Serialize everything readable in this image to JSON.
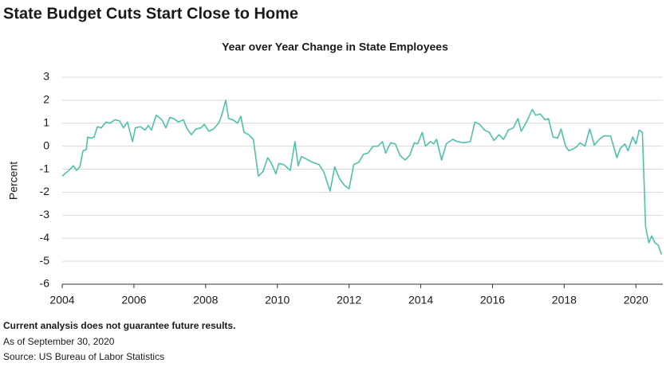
{
  "chart_data": {
    "type": "line",
    "title": "State Budget Cuts Start Close to Home",
    "subtitle": "Year over Year Change in State Employees",
    "y_label": "Percent",
    "footnote": "Current analysis does not guarantee future results.",
    "as_of": "As of September 30, 2020",
    "source": "Source: US Bureau of Labor Statistics",
    "xlim": [
      2004,
      2020.75
    ],
    "xticks": [
      2004,
      2006,
      2008,
      2010,
      2012,
      2014,
      2016,
      2018,
      2020
    ],
    "ylim": [
      -6,
      3
    ],
    "yticks": [
      -6,
      -5,
      -4,
      -3,
      -2,
      -1,
      0,
      1,
      2,
      3
    ],
    "grid": true,
    "x": [
      2004.0,
      2004.22,
      2004.31,
      2004.4,
      2004.49,
      2004.58,
      2004.67,
      2004.71,
      2004.8,
      2004.89,
      2004.98,
      2005.09,
      2005.22,
      2005.33,
      2005.47,
      2005.6,
      2005.71,
      2005.82,
      2005.96,
      2006.04,
      2006.18,
      2006.31,
      2006.4,
      2006.49,
      2006.62,
      2006.78,
      2006.89,
      2007.0,
      2007.11,
      2007.24,
      2007.38,
      2007.47,
      2007.6,
      2007.73,
      2007.87,
      2007.96,
      2008.09,
      2008.22,
      2008.36,
      2008.44,
      2008.56,
      2008.64,
      2008.76,
      2008.89,
      2008.98,
      2009.07,
      2009.2,
      2009.33,
      2009.47,
      2009.6,
      2009.73,
      2009.82,
      2009.96,
      2010.04,
      2010.18,
      2010.36,
      2010.49,
      2010.58,
      2010.67,
      2010.8,
      2010.98,
      2011.16,
      2011.29,
      2011.47,
      2011.6,
      2011.73,
      2011.87,
      2012.0,
      2012.13,
      2012.27,
      2012.4,
      2012.53,
      2012.67,
      2012.8,
      2012.93,
      2013.02,
      2013.16,
      2013.29,
      2013.42,
      2013.56,
      2013.69,
      2013.82,
      2013.91,
      2014.04,
      2014.13,
      2014.27,
      2014.36,
      2014.44,
      2014.58,
      2014.71,
      2014.89,
      2015.02,
      2015.2,
      2015.38,
      2015.51,
      2015.64,
      2015.78,
      2015.91,
      2016.04,
      2016.18,
      2016.31,
      2016.44,
      2016.58,
      2016.71,
      2016.8,
      2016.93,
      2017.11,
      2017.2,
      2017.33,
      2017.47,
      2017.56,
      2017.69,
      2017.82,
      2017.91,
      2018.04,
      2018.13,
      2018.27,
      2018.36,
      2018.44,
      2018.58,
      2018.71,
      2018.84,
      2018.98,
      2019.11,
      2019.29,
      2019.47,
      2019.56,
      2019.69,
      2019.78,
      2019.91,
      2020.0,
      2020.09,
      2020.18,
      2020.27,
      2020.36,
      2020.44,
      2020.53,
      2020.62,
      2020.71
    ],
    "series": [
      {
        "name": "State Employees",
        "color": "#4fc1aa",
        "values": [
          -1.3,
          -1.0,
          -0.85,
          -1.05,
          -0.9,
          -0.2,
          -0.15,
          0.4,
          0.35,
          0.4,
          0.85,
          0.8,
          1.05,
          1.0,
          1.15,
          1.1,
          0.8,
          1.05,
          0.2,
          0.8,
          0.85,
          0.7,
          0.9,
          0.7,
          1.35,
          1.15,
          0.8,
          1.25,
          1.2,
          1.05,
          1.15,
          0.8,
          0.5,
          0.75,
          0.8,
          0.95,
          0.65,
          0.75,
          1.0,
          1.3,
          2.0,
          1.2,
          1.15,
          1.0,
          1.3,
          0.6,
          0.5,
          0.3,
          -1.3,
          -1.1,
          -0.5,
          -0.7,
          -1.2,
          -0.75,
          -0.8,
          -1.05,
          0.2,
          -0.85,
          -0.45,
          -0.55,
          -0.7,
          -0.8,
          -1.1,
          -1.95,
          -0.9,
          -1.4,
          -1.7,
          -1.85,
          -0.8,
          -0.7,
          -0.35,
          -0.3,
          0.0,
          0.0,
          0.2,
          -0.3,
          0.15,
          0.1,
          -0.4,
          -0.6,
          -0.4,
          0.15,
          0.1,
          0.6,
          0.0,
          0.2,
          0.1,
          0.3,
          -0.6,
          0.1,
          0.3,
          0.2,
          0.15,
          0.2,
          1.05,
          0.95,
          0.7,
          0.6,
          0.25,
          0.5,
          0.3,
          0.7,
          0.8,
          1.2,
          0.65,
          1.0,
          1.6,
          1.35,
          1.4,
          1.15,
          1.2,
          0.4,
          0.35,
          0.75,
          0.0,
          -0.2,
          -0.1,
          0.0,
          0.15,
          0.0,
          0.75,
          0.05,
          0.3,
          0.45,
          0.45,
          -0.5,
          -0.1,
          0.1,
          -0.2,
          0.4,
          0.1,
          0.7,
          0.6,
          -3.5,
          -4.2,
          -3.9,
          -4.2,
          -4.3,
          -4.7
        ]
      }
    ]
  }
}
